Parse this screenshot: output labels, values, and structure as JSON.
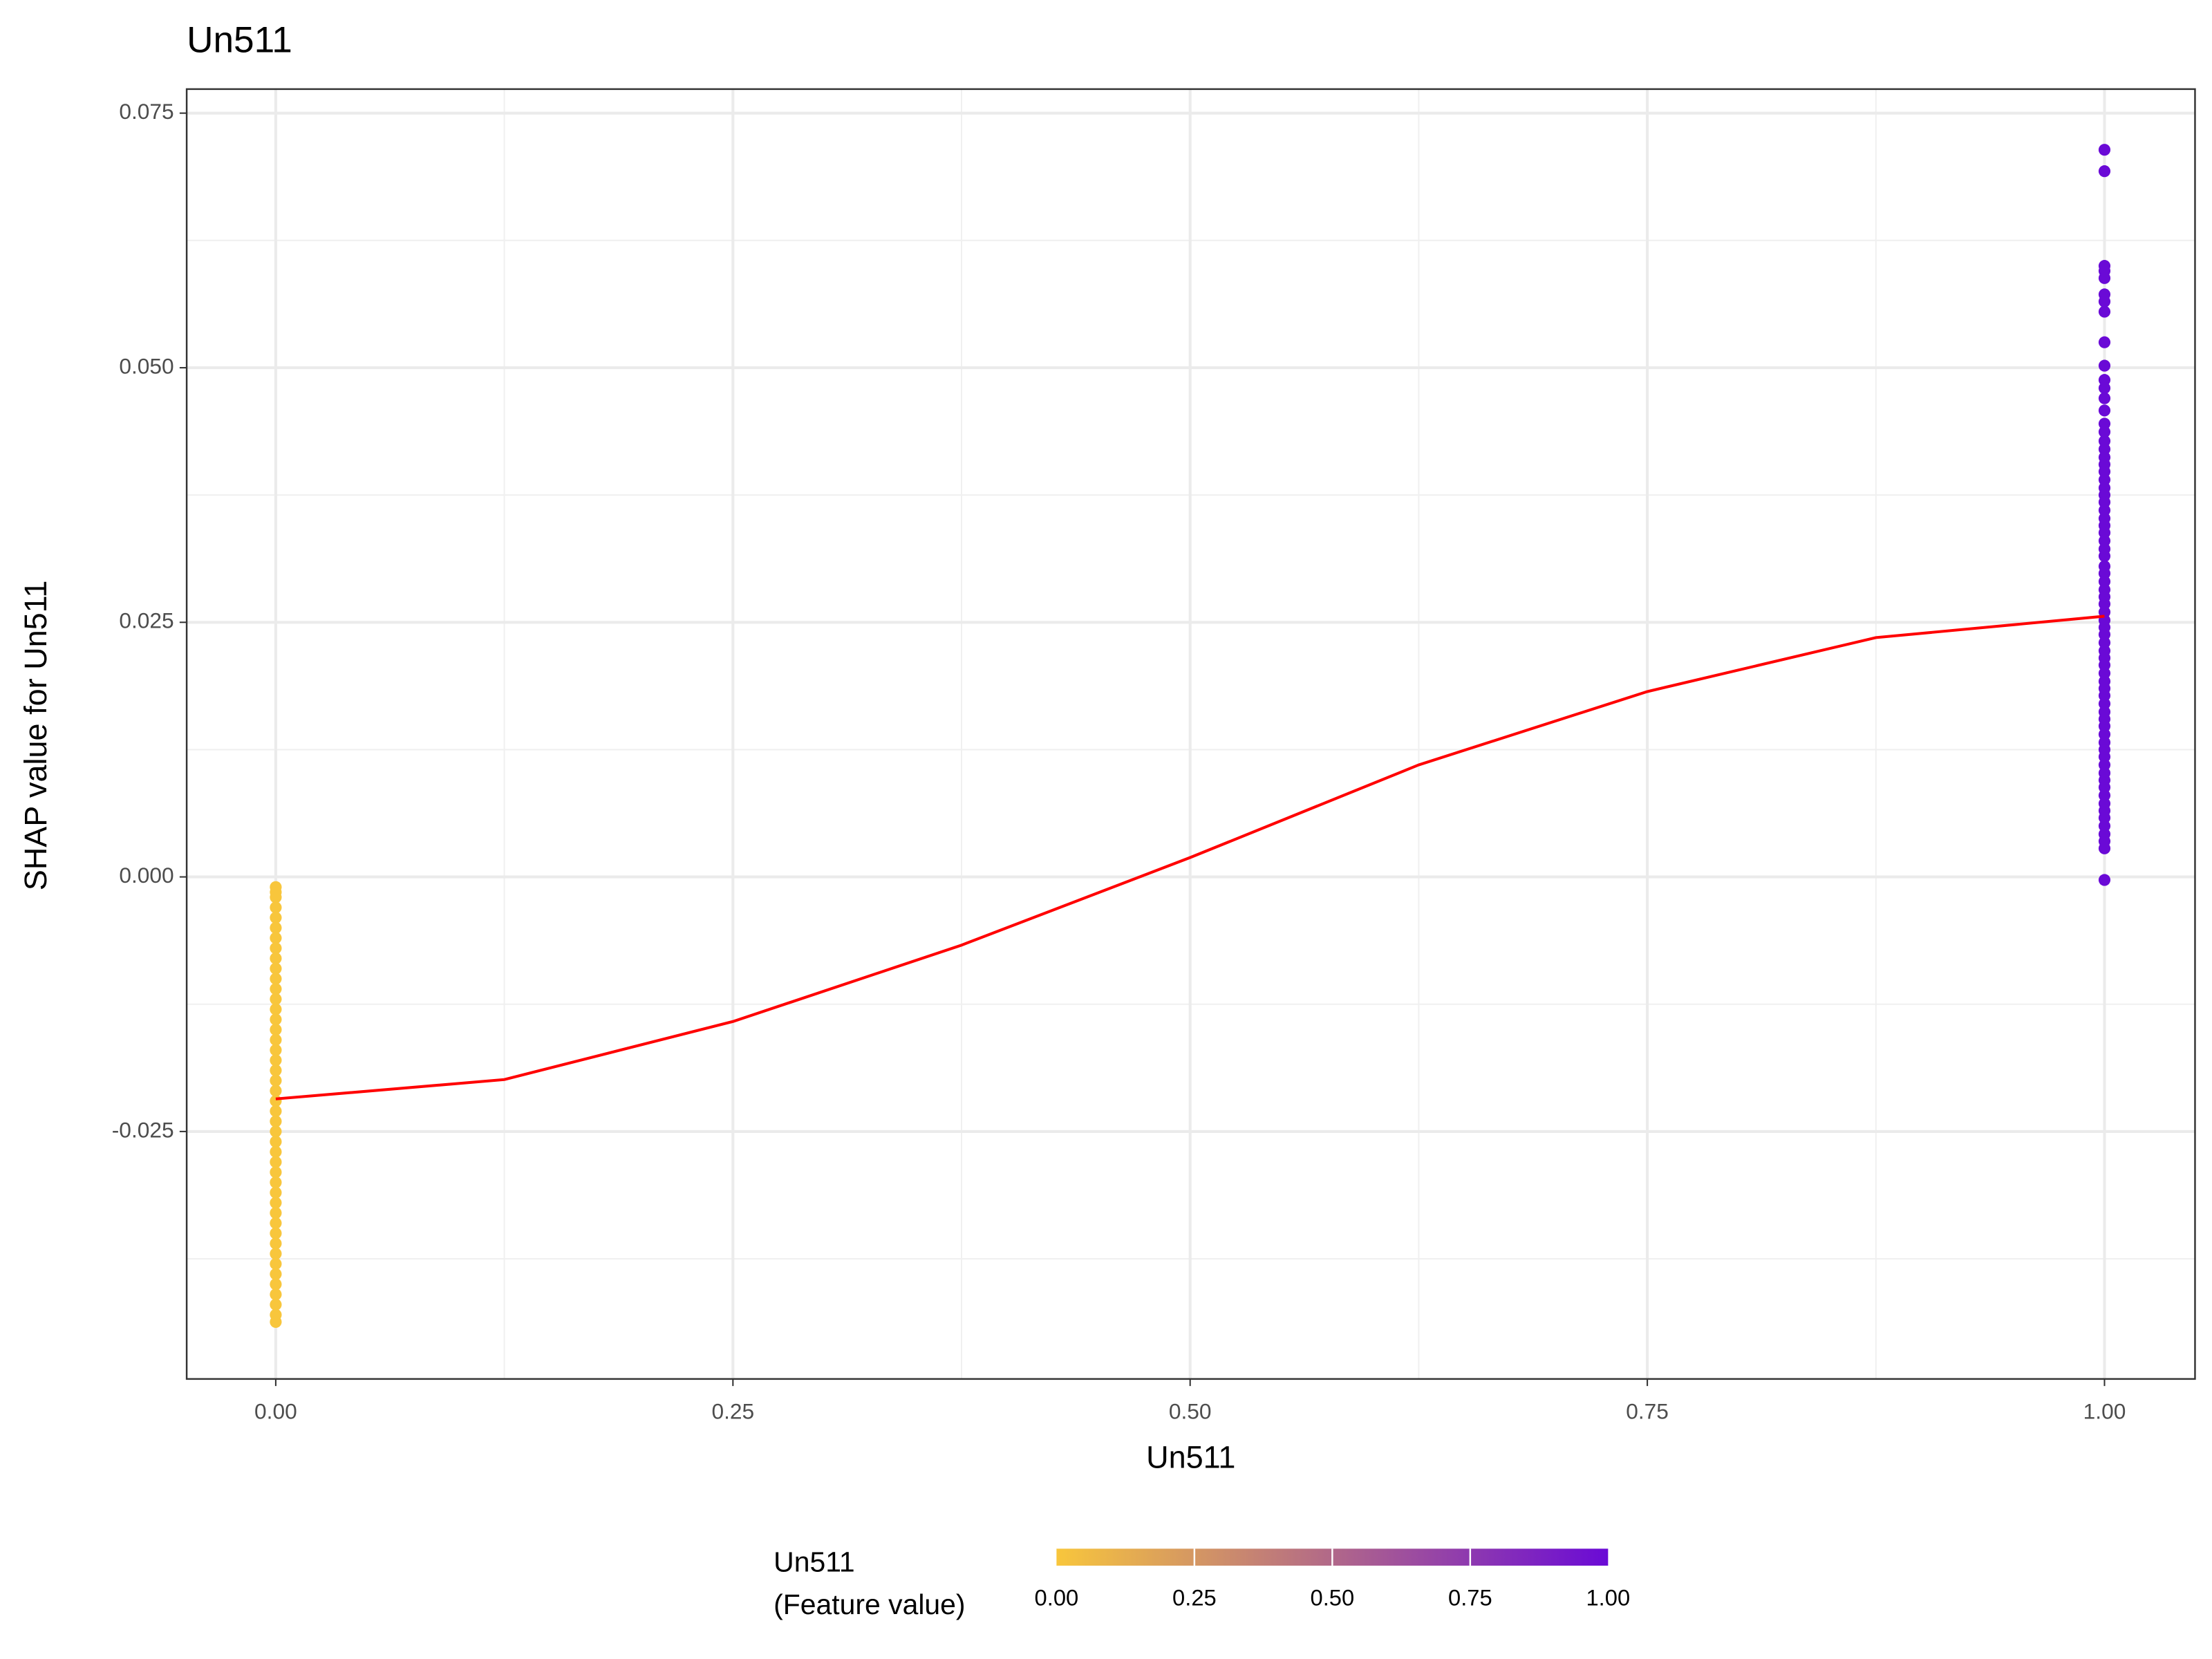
{
  "chart_data": {
    "type": "scatter",
    "title": "Un511",
    "x_label": "Un511",
    "y_label": "SHAP value for Un511",
    "x": [
      0,
      0,
      0,
      0,
      0,
      0,
      0,
      0,
      0,
      0,
      0,
      0,
      0,
      0,
      0,
      0,
      0,
      0,
      0,
      0,
      0,
      0,
      0,
      0,
      0,
      0,
      0,
      0,
      0,
      0,
      0,
      0,
      0,
      0,
      0,
      0,
      0,
      0,
      0,
      0,
      0,
      0,
      0,
      0,
      0,
      1,
      1,
      1,
      1,
      1,
      1,
      1,
      1,
      1,
      1,
      1,
      1,
      1,
      1,
      1,
      1,
      1,
      1,
      1,
      1,
      1,
      1,
      1,
      1,
      1,
      1,
      1,
      1,
      1,
      1,
      1,
      1,
      1,
      1,
      1,
      1,
      1,
      1,
      1,
      1,
      1,
      1,
      1,
      1,
      1,
      1,
      1,
      1,
      1,
      1,
      1,
      1,
      1,
      1,
      1,
      1,
      1,
      1,
      1,
      1,
      1,
      1,
      1,
      1,
      1,
      1,
      1,
      1,
      1,
      1,
      1
    ],
    "values": [
      -0.001,
      -0.0015,
      -0.002,
      -0.003,
      -0.004,
      -0.005,
      -0.006,
      -0.007,
      -0.008,
      -0.009,
      -0.01,
      -0.011,
      -0.012,
      -0.013,
      -0.014,
      -0.015,
      -0.016,
      -0.017,
      -0.018,
      -0.019,
      -0.02,
      -0.021,
      -0.022,
      -0.023,
      -0.024,
      -0.025,
      -0.026,
      -0.027,
      -0.028,
      -0.029,
      -0.03,
      -0.031,
      -0.032,
      -0.033,
      -0.034,
      -0.035,
      -0.036,
      -0.037,
      -0.038,
      -0.039,
      -0.04,
      -0.041,
      -0.042,
      -0.043,
      -0.0437,
      0.0714,
      0.0693,
      0.06,
      0.0595,
      0.0588,
      0.0572,
      0.0565,
      0.0555,
      0.0525,
      0.0502,
      0.0488,
      0.048,
      0.047,
      0.0458,
      0.0445,
      0.0437,
      0.0428,
      0.042,
      0.0412,
      0.0405,
      0.0398,
      0.039,
      0.0382,
      0.0375,
      0.0368,
      0.036,
      0.0352,
      0.0345,
      0.0338,
      0.033,
      0.0322,
      0.0315,
      0.0305,
      0.0298,
      0.029,
      0.0282,
      0.0275,
      0.0268,
      0.026,
      0.0252,
      0.0245,
      0.0238,
      0.023,
      0.0222,
      0.0215,
      0.0208,
      0.02,
      0.0192,
      0.0185,
      0.0178,
      0.017,
      0.0162,
      0.0155,
      0.0148,
      0.014,
      0.0132,
      0.0125,
      0.0118,
      0.011,
      0.0102,
      0.0095,
      0.0088,
      0.008,
      0.0072,
      0.0065,
      0.0058,
      0.005,
      0.0042,
      0.0035,
      0.0028,
      -0.0003
    ],
    "color_low": "#f8c63c",
    "color_high": "#6a0ad6",
    "trend": {
      "color": "#ff0000",
      "x": [
        0,
        0.125,
        0.25,
        0.375,
        0.5,
        0.625,
        0.75,
        0.875,
        1
      ],
      "y": [
        -0.0218,
        -0.0199,
        -0.0142,
        -0.0067,
        0.0019,
        0.011,
        0.0182,
        0.0235,
        0.0256
      ]
    },
    "xlim": [
      -0.0487,
      1.0495
    ],
    "ylim": [
      -0.0493,
      0.07736
    ],
    "xticks": [
      {
        "value": 0,
        "label": "0.00"
      },
      {
        "value": 0.25,
        "label": "0.25"
      },
      {
        "value": 0.5,
        "label": "0.50"
      },
      {
        "value": 0.75,
        "label": "0.75"
      },
      {
        "value": 1,
        "label": "1.00"
      }
    ],
    "yticks": [
      {
        "value": -0.025,
        "label": "-0.025"
      },
      {
        "value": 0,
        "label": "0.000"
      },
      {
        "value": 0.025,
        "label": "0.025"
      },
      {
        "value": 0.05,
        "label": "0.050"
      },
      {
        "value": 0.075,
        "label": "0.075"
      }
    ],
    "grid": true,
    "colorbar_title": [
      "Un511",
      "(Feature value)"
    ],
    "colorbar_ticks": [
      {
        "value": 0,
        "label": "0.00"
      },
      {
        "value": 0.25,
        "label": "0.25"
      },
      {
        "value": 0.5,
        "label": "0.50"
      },
      {
        "value": 0.75,
        "label": "0.75"
      },
      {
        "value": 1,
        "label": "1.00"
      }
    ]
  }
}
